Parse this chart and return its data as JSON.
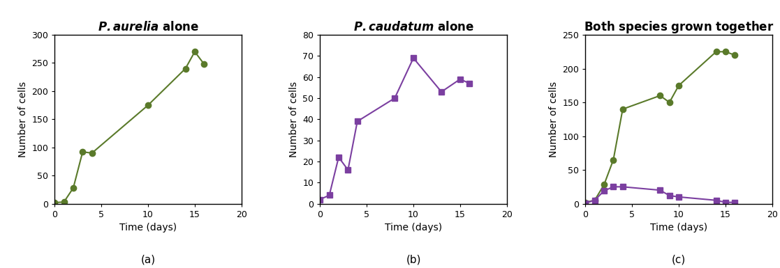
{
  "panel_a": {
    "x": [
      0,
      1,
      2,
      3,
      4,
      10,
      14,
      15,
      16
    ],
    "y": [
      2,
      3,
      28,
      92,
      90,
      175,
      240,
      270,
      248
    ],
    "color": "#5a7a2a",
    "marker": "o",
    "ylim": [
      0,
      300
    ],
    "yticks": [
      0,
      50,
      100,
      150,
      200,
      250,
      300
    ],
    "xlim": [
      0,
      20
    ],
    "xticks": [
      0,
      5,
      10,
      15,
      20
    ],
    "xlabel": "Time (days)",
    "ylabel": "Number of cells",
    "label": "(a)"
  },
  "panel_b": {
    "x": [
      0,
      1,
      2,
      3,
      4,
      8,
      10,
      13,
      15,
      16
    ],
    "y": [
      2,
      4,
      22,
      16,
      39,
      50,
      69,
      53,
      59,
      57
    ],
    "color": "#7b3fa0",
    "marker": "s",
    "ylim": [
      0,
      80
    ],
    "yticks": [
      0,
      10,
      20,
      30,
      40,
      50,
      60,
      70,
      80
    ],
    "xlim": [
      0,
      20
    ],
    "xticks": [
      0,
      5,
      10,
      15,
      20
    ],
    "xlabel": "Time (days)",
    "ylabel": "Number of cells",
    "label": "(b)"
  },
  "panel_c": {
    "aurelia_x": [
      0,
      1,
      2,
      3,
      4,
      8,
      9,
      10,
      14,
      15,
      16
    ],
    "aurelia_y": [
      2,
      5,
      28,
      65,
      140,
      160,
      150,
      175,
      225,
      225,
      220
    ],
    "caudatum_x": [
      0,
      1,
      2,
      3,
      4,
      8,
      9,
      10,
      14,
      15,
      16
    ],
    "caudatum_y": [
      1,
      5,
      19,
      25,
      25,
      20,
      12,
      10,
      5,
      2,
      2
    ],
    "aurelia_color": "#5a7a2a",
    "caudatum_color": "#7b3fa0",
    "aurelia_marker": "o",
    "caudatum_marker": "s",
    "ylim": [
      0,
      250
    ],
    "yticks": [
      0,
      50,
      100,
      150,
      200,
      250
    ],
    "xlim": [
      0,
      20
    ],
    "xticks": [
      0,
      5,
      10,
      15,
      20
    ],
    "xlabel": "Time (days)",
    "ylabel": "Number of cells",
    "label": "(c)"
  },
  "background_color": "#ffffff",
  "border_color": "#000000",
  "tick_label_fontsize": 9,
  "axis_label_fontsize": 10,
  "title_fontsize": 12,
  "panel_label_fontsize": 11,
  "linewidth": 1.5,
  "markersize": 6
}
